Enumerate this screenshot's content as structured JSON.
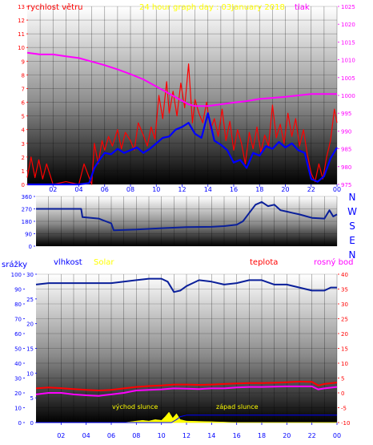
{
  "title": "24 hour graph day : 03January 2018",
  "colors": {
    "wind_gust": "#ff0000",
    "wind_avg": "#0000ff",
    "pressure": "#ff00ff",
    "direction": "#0a1f9a",
    "humidity": "#0a1f9a",
    "temperature": "#ff0000",
    "dewpoint": "#ff00ff",
    "solar": "#ffff00",
    "rain": "#0000ff",
    "title": "#ffff00",
    "tick_blue": "#0000ff",
    "tick_red": "#ff0000",
    "tick_magenta": "#ff00ff"
  },
  "chart_data": [
    {
      "type": "line",
      "id": "wind-pressure",
      "left_label": "rychlost větru",
      "right_label": "tlak",
      "ylim_left": [
        0,
        13
      ],
      "yticks_left": [
        0,
        1,
        2,
        3,
        4,
        5,
        6,
        7,
        8,
        9,
        10,
        11,
        12,
        13
      ],
      "ylim_right": [
        975,
        1025
      ],
      "yticks_right": [
        975,
        980,
        985,
        990,
        995,
        1000,
        1005,
        1010,
        1015,
        1020,
        1025
      ],
      "xlim": [
        0,
        24
      ],
      "xticks": [
        "02",
        "04",
        "06",
        "08",
        "10",
        "12",
        "14",
        "16",
        "18",
        "20",
        "22",
        "00"
      ],
      "grid": true,
      "series": [
        {
          "key": "gust",
          "axis": "left",
          "x": [
            0,
            0.3,
            0.6,
            0.9,
            1.2,
            1.5,
            2,
            3,
            4,
            4.4,
            5,
            5.2,
            5.5,
            5.8,
            6,
            6.3,
            6.6,
            7,
            7.3,
            7.6,
            8,
            8.3,
            8.6,
            9,
            9.3,
            9.6,
            9.9,
            10.2,
            10.5,
            10.8,
            11,
            11.3,
            11.6,
            11.9,
            12.2,
            12.5,
            12.8,
            13,
            13.3,
            13.6,
            13.9,
            14.2,
            14.5,
            14.8,
            15.1,
            15.4,
            15.7,
            16,
            16.3,
            16.6,
            16.9,
            17.2,
            17.5,
            17.8,
            18.1,
            18.4,
            18.7,
            19,
            19.3,
            19.6,
            19.9,
            20.2,
            20.5,
            20.8,
            21.1,
            21.4,
            21.7,
            22,
            22.3,
            22.6,
            22.9,
            23.2,
            23.5,
            23.8,
            24
          ],
          "y": [
            0.5,
            2,
            0.5,
            1.8,
            0.4,
            1.5,
            0,
            0.2,
            0,
            1.5,
            0,
            3,
            1.5,
            3.2,
            2.5,
            3.5,
            2.8,
            4,
            2.6,
            3.8,
            3.2,
            2.5,
            4.5,
            3.6,
            2.8,
            4.2,
            3.3,
            6.5,
            4.8,
            7.5,
            5.2,
            6.8,
            5,
            7.4,
            5.6,
            8.8,
            4.5,
            6.2,
            5.2,
            4.5,
            6,
            4,
            4.8,
            3.5,
            5.5,
            3.2,
            4.6,
            2.5,
            4,
            3,
            1.5,
            3.8,
            2.6,
            4.2,
            2.3,
            3.6,
            2.8,
            5.8,
            3.4,
            4.4,
            3,
            5.2,
            3.5,
            4.8,
            2.8,
            4,
            2.2,
            0.8,
            0.2,
            1.5,
            0.4,
            2,
            3.2,
            5.5,
            4.5
          ],
          "label": ""
        },
        {
          "key": "average",
          "axis": "left",
          "x": [
            0,
            1,
            2,
            3,
            4,
            4.8,
            5.2,
            5.6,
            6,
            6.5,
            7,
            7.5,
            8,
            8.5,
            9,
            9.5,
            10,
            10.5,
            11,
            11.5,
            12,
            12.5,
            13,
            13.5,
            14,
            14.5,
            15,
            15.5,
            16,
            16.5,
            17,
            17.5,
            18,
            18.5,
            19,
            19.5,
            20,
            20.5,
            21,
            21.5,
            22,
            22.5,
            23,
            23.5,
            24
          ],
          "y": [
            0,
            0,
            0,
            0,
            0,
            0.1,
            1.2,
            1.8,
            2.3,
            2.2,
            2.6,
            2.3,
            2.5,
            2.7,
            2.3,
            2.6,
            3,
            3.4,
            3.5,
            4,
            4.2,
            4.5,
            3.7,
            3.4,
            5.2,
            3.2,
            2.9,
            2.5,
            1.6,
            1.8,
            1.2,
            2.3,
            2.1,
            2.8,
            2.6,
            3.1,
            2.7,
            3,
            2.5,
            2.3,
            0.4,
            0.2,
            0.6,
            1.9,
            2.7
          ],
          "label": ""
        },
        {
          "key": "pressure",
          "axis": "right",
          "x": [
            0,
            1,
            2,
            3,
            4,
            5,
            6,
            7,
            8,
            9,
            10,
            11,
            11.5,
            12,
            12.5,
            13,
            14,
            15,
            16,
            17,
            18,
            19,
            20,
            21,
            22,
            23,
            24
          ],
          "y": [
            1012,
            1011.5,
            1011.5,
            1011,
            1010.5,
            1009.5,
            1008.5,
            1007.3,
            1006,
            1004.5,
            1002.5,
            1000.5,
            999.5,
            998.5,
            997.5,
            997,
            997,
            997.5,
            998,
            998.4,
            999,
            999.3,
            999.6,
            1000,
            1000.4,
            1000.4,
            1000.4
          ],
          "label": ""
        }
      ]
    },
    {
      "type": "line",
      "id": "wind-direction",
      "ylim": [
        0,
        360
      ],
      "yticks": [
        0,
        90,
        180,
        270,
        360
      ],
      "compass_labels": [
        "N",
        "W",
        "S",
        "E",
        "N"
      ],
      "xlim": [
        0,
        24
      ],
      "grid": true,
      "series": [
        {
          "key": "direction",
          "x": [
            0,
            2,
            3.6,
            3.7,
            5,
            6,
            6.2,
            8,
            10,
            12,
            14,
            15,
            16,
            16.5,
            17,
            17.5,
            18,
            18.5,
            19,
            19.5,
            20,
            20.5,
            21,
            22,
            23,
            23.4,
            23.7,
            24
          ],
          "y": [
            270,
            270,
            270,
            210,
            200,
            165,
            115,
            120,
            130,
            138,
            140,
            145,
            155,
            180,
            240,
            300,
            320,
            290,
            300,
            260,
            250,
            240,
            230,
            205,
            200,
            260,
            215,
            230
          ],
          "label": ""
        }
      ]
    },
    {
      "type": "line",
      "id": "temp-humidity",
      "labels": {
        "rain": "srážky",
        "humidity": "vlhkost",
        "solar": "Solar",
        "temperature": "teplota",
        "dewpoint": "rosný bod"
      },
      "ylim_left": [
        0,
        100
      ],
      "yticks_left": [
        0,
        10,
        20,
        30,
        40,
        50,
        60,
        70,
        80,
        90,
        100
      ],
      "ylim_mid": [
        0,
        30
      ],
      "yticks_mid": [
        0,
        5,
        10,
        15,
        20,
        25,
        30
      ],
      "ylim_right": [
        -10,
        40
      ],
      "yticks_right": [
        -10,
        -5,
        0,
        5,
        10,
        15,
        20,
        25,
        30,
        35,
        40
      ],
      "xlim": [
        0,
        24
      ],
      "xticks": [
        "02",
        "04",
        "06",
        "08",
        "10",
        "12",
        "14",
        "16",
        "18",
        "20",
        "22",
        "00"
      ],
      "annotations": [
        "východ slunce",
        "západ slunce"
      ],
      "grid": true,
      "series": [
        {
          "key": "humidity",
          "axis": "left",
          "x": [
            0,
            1,
            2,
            3,
            4,
            5,
            6,
            7,
            8,
            9,
            10,
            10.5,
            11,
            11.5,
            12,
            12.5,
            13,
            14,
            15,
            16,
            17,
            18,
            19,
            20,
            21,
            22,
            23,
            23.5,
            24
          ],
          "y": [
            93,
            94,
            94,
            94,
            94,
            94,
            94,
            95,
            96,
            97,
            97,
            95,
            88,
            89,
            92,
            94,
            96,
            95,
            93,
            94,
            96,
            96,
            93,
            93,
            91,
            89,
            89,
            91,
            91
          ],
          "label": ""
        },
        {
          "key": "temperature",
          "axis": "right",
          "x": [
            0,
            1,
            2,
            3,
            4,
            5,
            6,
            7,
            8,
            9,
            10,
            11,
            12,
            13,
            14,
            15,
            16,
            17,
            18,
            19,
            20,
            21,
            22,
            22.5,
            23,
            24
          ],
          "y": [
            1.5,
            1.8,
            1.6,
            1.3,
            1,
            0.8,
            1,
            1.5,
            2,
            2.3,
            2.5,
            2.8,
            2.8,
            2.7,
            2.8,
            3,
            3.2,
            3.3,
            3.3,
            3.4,
            3.6,
            3.8,
            3.7,
            2.5,
            3,
            3.5
          ],
          "label": ""
        },
        {
          "key": "dewpoint",
          "axis": "right",
          "x": [
            0,
            1,
            2,
            3,
            4,
            5,
            6,
            7,
            8,
            9,
            10,
            11,
            12,
            13,
            14,
            15,
            16,
            17,
            18,
            19,
            20,
            21,
            22,
            22.5,
            23,
            24
          ],
          "y": [
            -0.5,
            0,
            0,
            -0.5,
            -0.8,
            -1,
            -0.5,
            0,
            0.8,
            1,
            1.2,
            1.5,
            1.4,
            1.3,
            1.5,
            1.5,
            1.8,
            2,
            2,
            2.1,
            2.2,
            2.2,
            2.2,
            1.2,
            1.5,
            2
          ],
          "label": ""
        },
        {
          "key": "solar",
          "axis": "left",
          "x": [
            0,
            7,
            7.5,
            8,
            8.5,
            9,
            9.5,
            10,
            10.3,
            10.6,
            10.9,
            11.2,
            11.5,
            12,
            13,
            14,
            15,
            16,
            24
          ],
          "y": [
            0,
            0,
            0.5,
            1,
            1.5,
            1,
            2,
            1.5,
            4,
            7,
            3,
            6,
            2,
            1,
            0.8,
            0.6,
            0.3,
            0,
            0
          ],
          "label": ""
        },
        {
          "key": "rain",
          "axis": "left",
          "x": [
            0,
            10.8,
            11.2,
            11.5,
            12,
            24
          ],
          "y": [
            0,
            0,
            2,
            4,
            5,
            5
          ],
          "label": ""
        }
      ]
    }
  ]
}
